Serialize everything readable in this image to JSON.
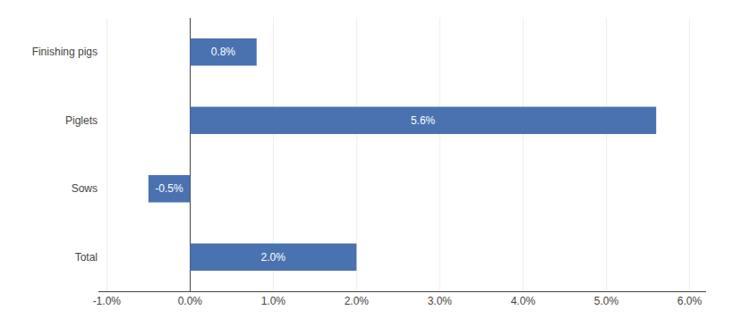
{
  "chart_data": {
    "type": "bar",
    "orientation": "horizontal",
    "categories": [
      "Finishing pigs",
      "Piglets",
      "Sows",
      "Total"
    ],
    "values": [
      0.008,
      0.056,
      -0.005,
      0.02
    ],
    "value_labels": [
      "0.8%",
      "5.6%",
      "-0.5%",
      "2.0%"
    ],
    "data_labels": true,
    "color": "#4a72b0",
    "xlim": [
      -0.011,
      0.062
    ],
    "xticks": [
      {
        "value": -0.01,
        "label": "-1.0%"
      },
      {
        "value": 0.0,
        "label": "0.0%"
      },
      {
        "value": 0.01,
        "label": "1.0%"
      },
      {
        "value": 0.02,
        "label": "2.0%"
      },
      {
        "value": 0.03,
        "label": "3.0%"
      },
      {
        "value": 0.04,
        "label": "4.0%"
      },
      {
        "value": 0.05,
        "label": "5.0%"
      },
      {
        "value": 0.06,
        "label": "6.0%"
      }
    ],
    "grid": true
  }
}
